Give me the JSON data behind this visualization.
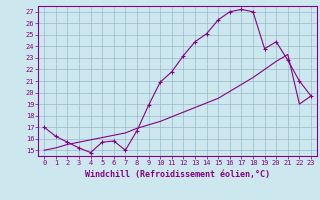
{
  "xlabel": "Windchill (Refroidissement éolien,°C)",
  "background_color": "#cce8ee",
  "line_color": "#880088",
  "grid_color": "#99bbcc",
  "xlim": [
    -0.5,
    23.5
  ],
  "ylim": [
    14.5,
    27.5
  ],
  "xticks": [
    0,
    1,
    2,
    3,
    4,
    5,
    6,
    7,
    8,
    9,
    10,
    11,
    12,
    13,
    14,
    15,
    16,
    17,
    18,
    19,
    20,
    21,
    22,
    23
  ],
  "yticks": [
    15,
    16,
    17,
    18,
    19,
    20,
    21,
    22,
    23,
    24,
    25,
    26,
    27
  ],
  "series1_x": [
    0,
    1,
    2,
    3,
    4,
    5,
    6,
    7,
    8,
    9,
    10,
    11,
    12,
    13,
    14,
    15,
    16,
    17,
    18,
    19,
    20,
    21,
    22,
    23
  ],
  "series1_y": [
    17.0,
    16.2,
    15.7,
    15.2,
    14.8,
    15.7,
    15.8,
    15.0,
    16.7,
    18.9,
    20.9,
    21.8,
    23.2,
    24.4,
    25.1,
    26.3,
    27.0,
    27.2,
    27.0,
    23.8,
    24.4,
    22.8,
    21.0,
    19.7
  ],
  "series2_x": [
    0,
    1,
    2,
    3,
    4,
    5,
    6,
    7,
    8,
    9,
    10,
    11,
    12,
    13,
    14,
    15,
    16,
    17,
    18,
    19,
    20,
    21,
    22,
    23
  ],
  "series2_y": [
    15.0,
    15.2,
    15.5,
    15.7,
    15.9,
    16.1,
    16.3,
    16.5,
    16.9,
    17.2,
    17.5,
    17.9,
    18.3,
    18.7,
    19.1,
    19.5,
    20.1,
    20.7,
    21.3,
    22.0,
    22.7,
    23.3,
    19.0,
    19.7
  ],
  "tick_fontsize": 5.0,
  "xlabel_fontsize": 6.0,
  "marker": "+"
}
